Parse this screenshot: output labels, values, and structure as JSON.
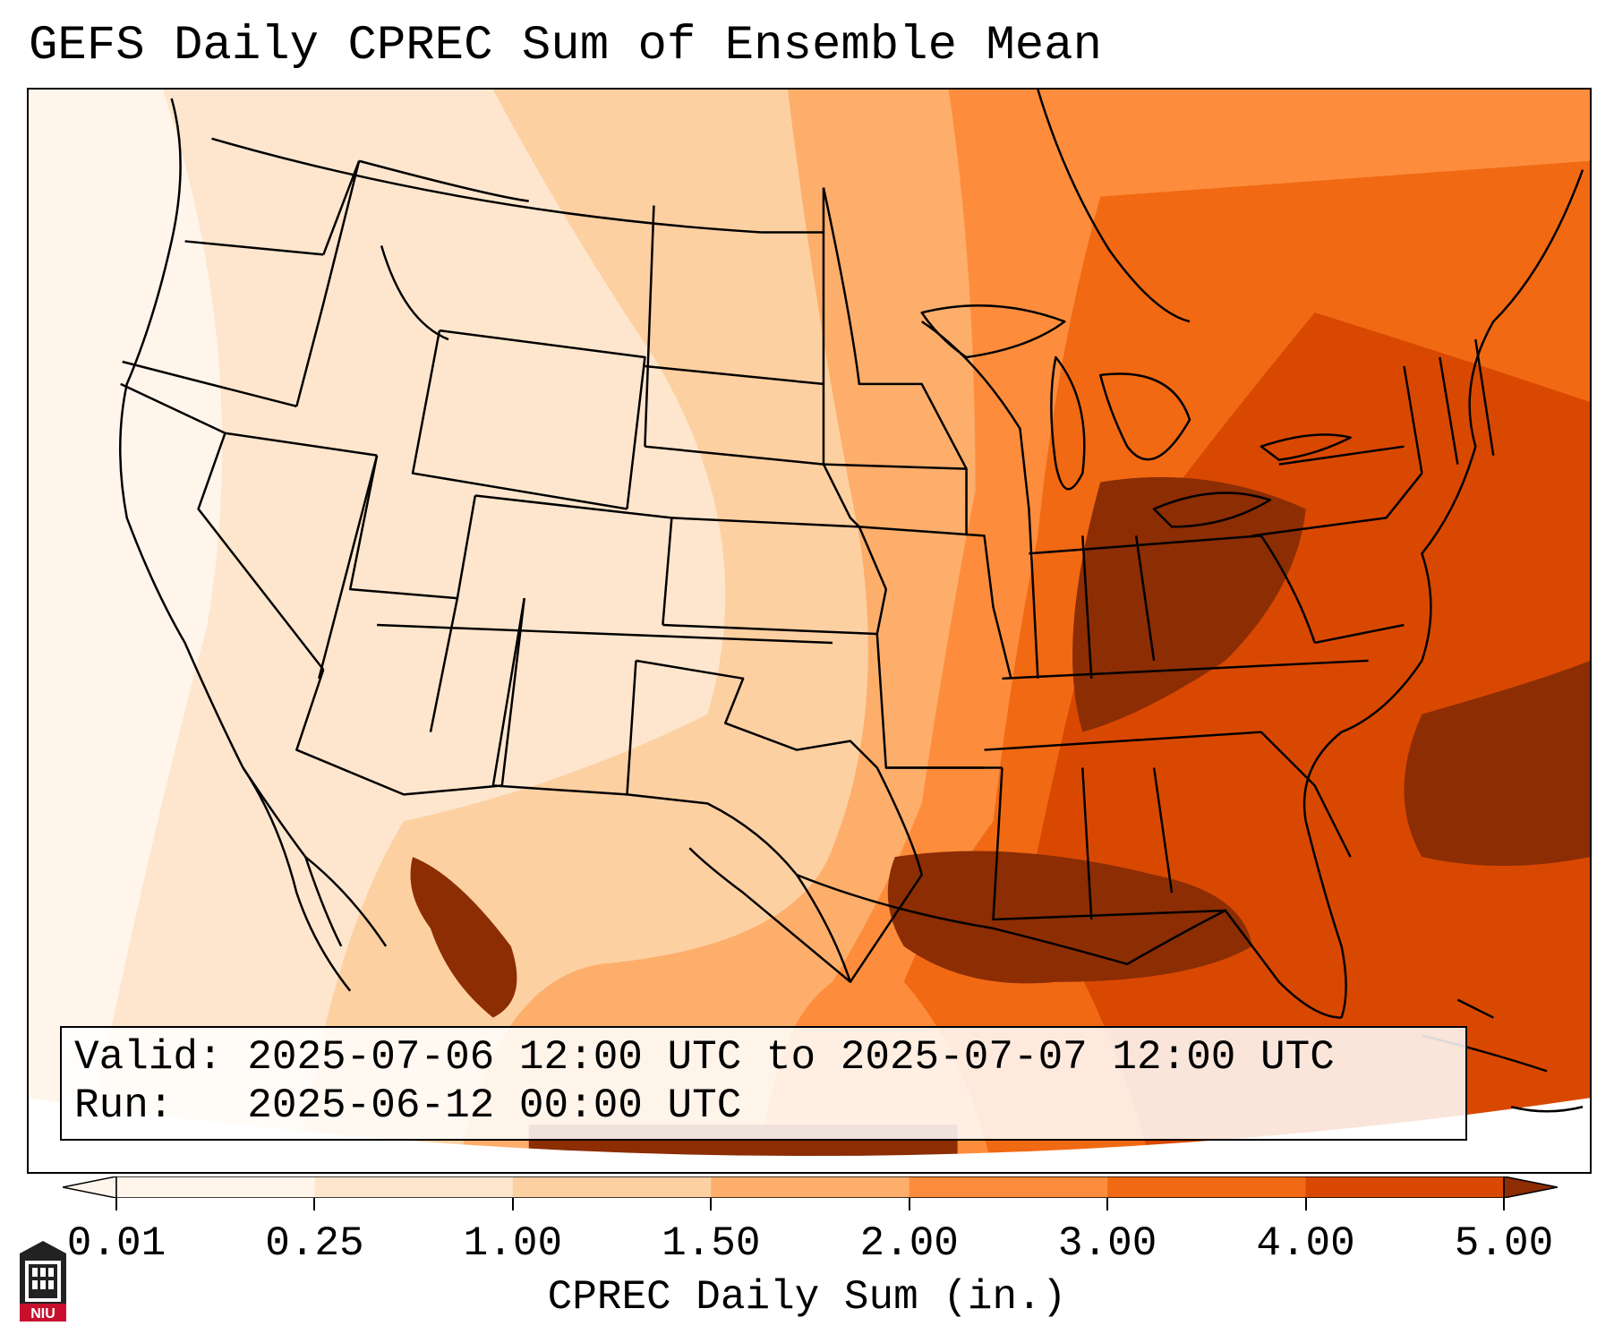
{
  "title": "GEFS Daily CPREC Sum of Ensemble Mean",
  "info": {
    "valid_line": "Valid: 2025-07-06 12:00 UTC to 2025-07-07 12:00 UTC",
    "run_line": "Run:   2025-06-12 00:00 UTC"
  },
  "colorbar": {
    "label": "CPREC Daily Sum (in.)",
    "ticks": [
      "0.01",
      "0.25",
      "1.00",
      "1.50",
      "2.00",
      "3.00",
      "4.00",
      "5.00"
    ],
    "colors": [
      "#fff5eb",
      "#fee6ce",
      "#fdd0a2",
      "#fdae6b",
      "#fd8d3c",
      "#f16913",
      "#d94801",
      "#8c2d04"
    ],
    "extend": "both"
  },
  "logo": {
    "text": "NIU",
    "colors": {
      "red": "#c8102e",
      "dark": "#222222"
    }
  },
  "map": {
    "projection": "lambert-conic",
    "region": "Contiguous United States",
    "coastline_color": "#000000"
  }
}
